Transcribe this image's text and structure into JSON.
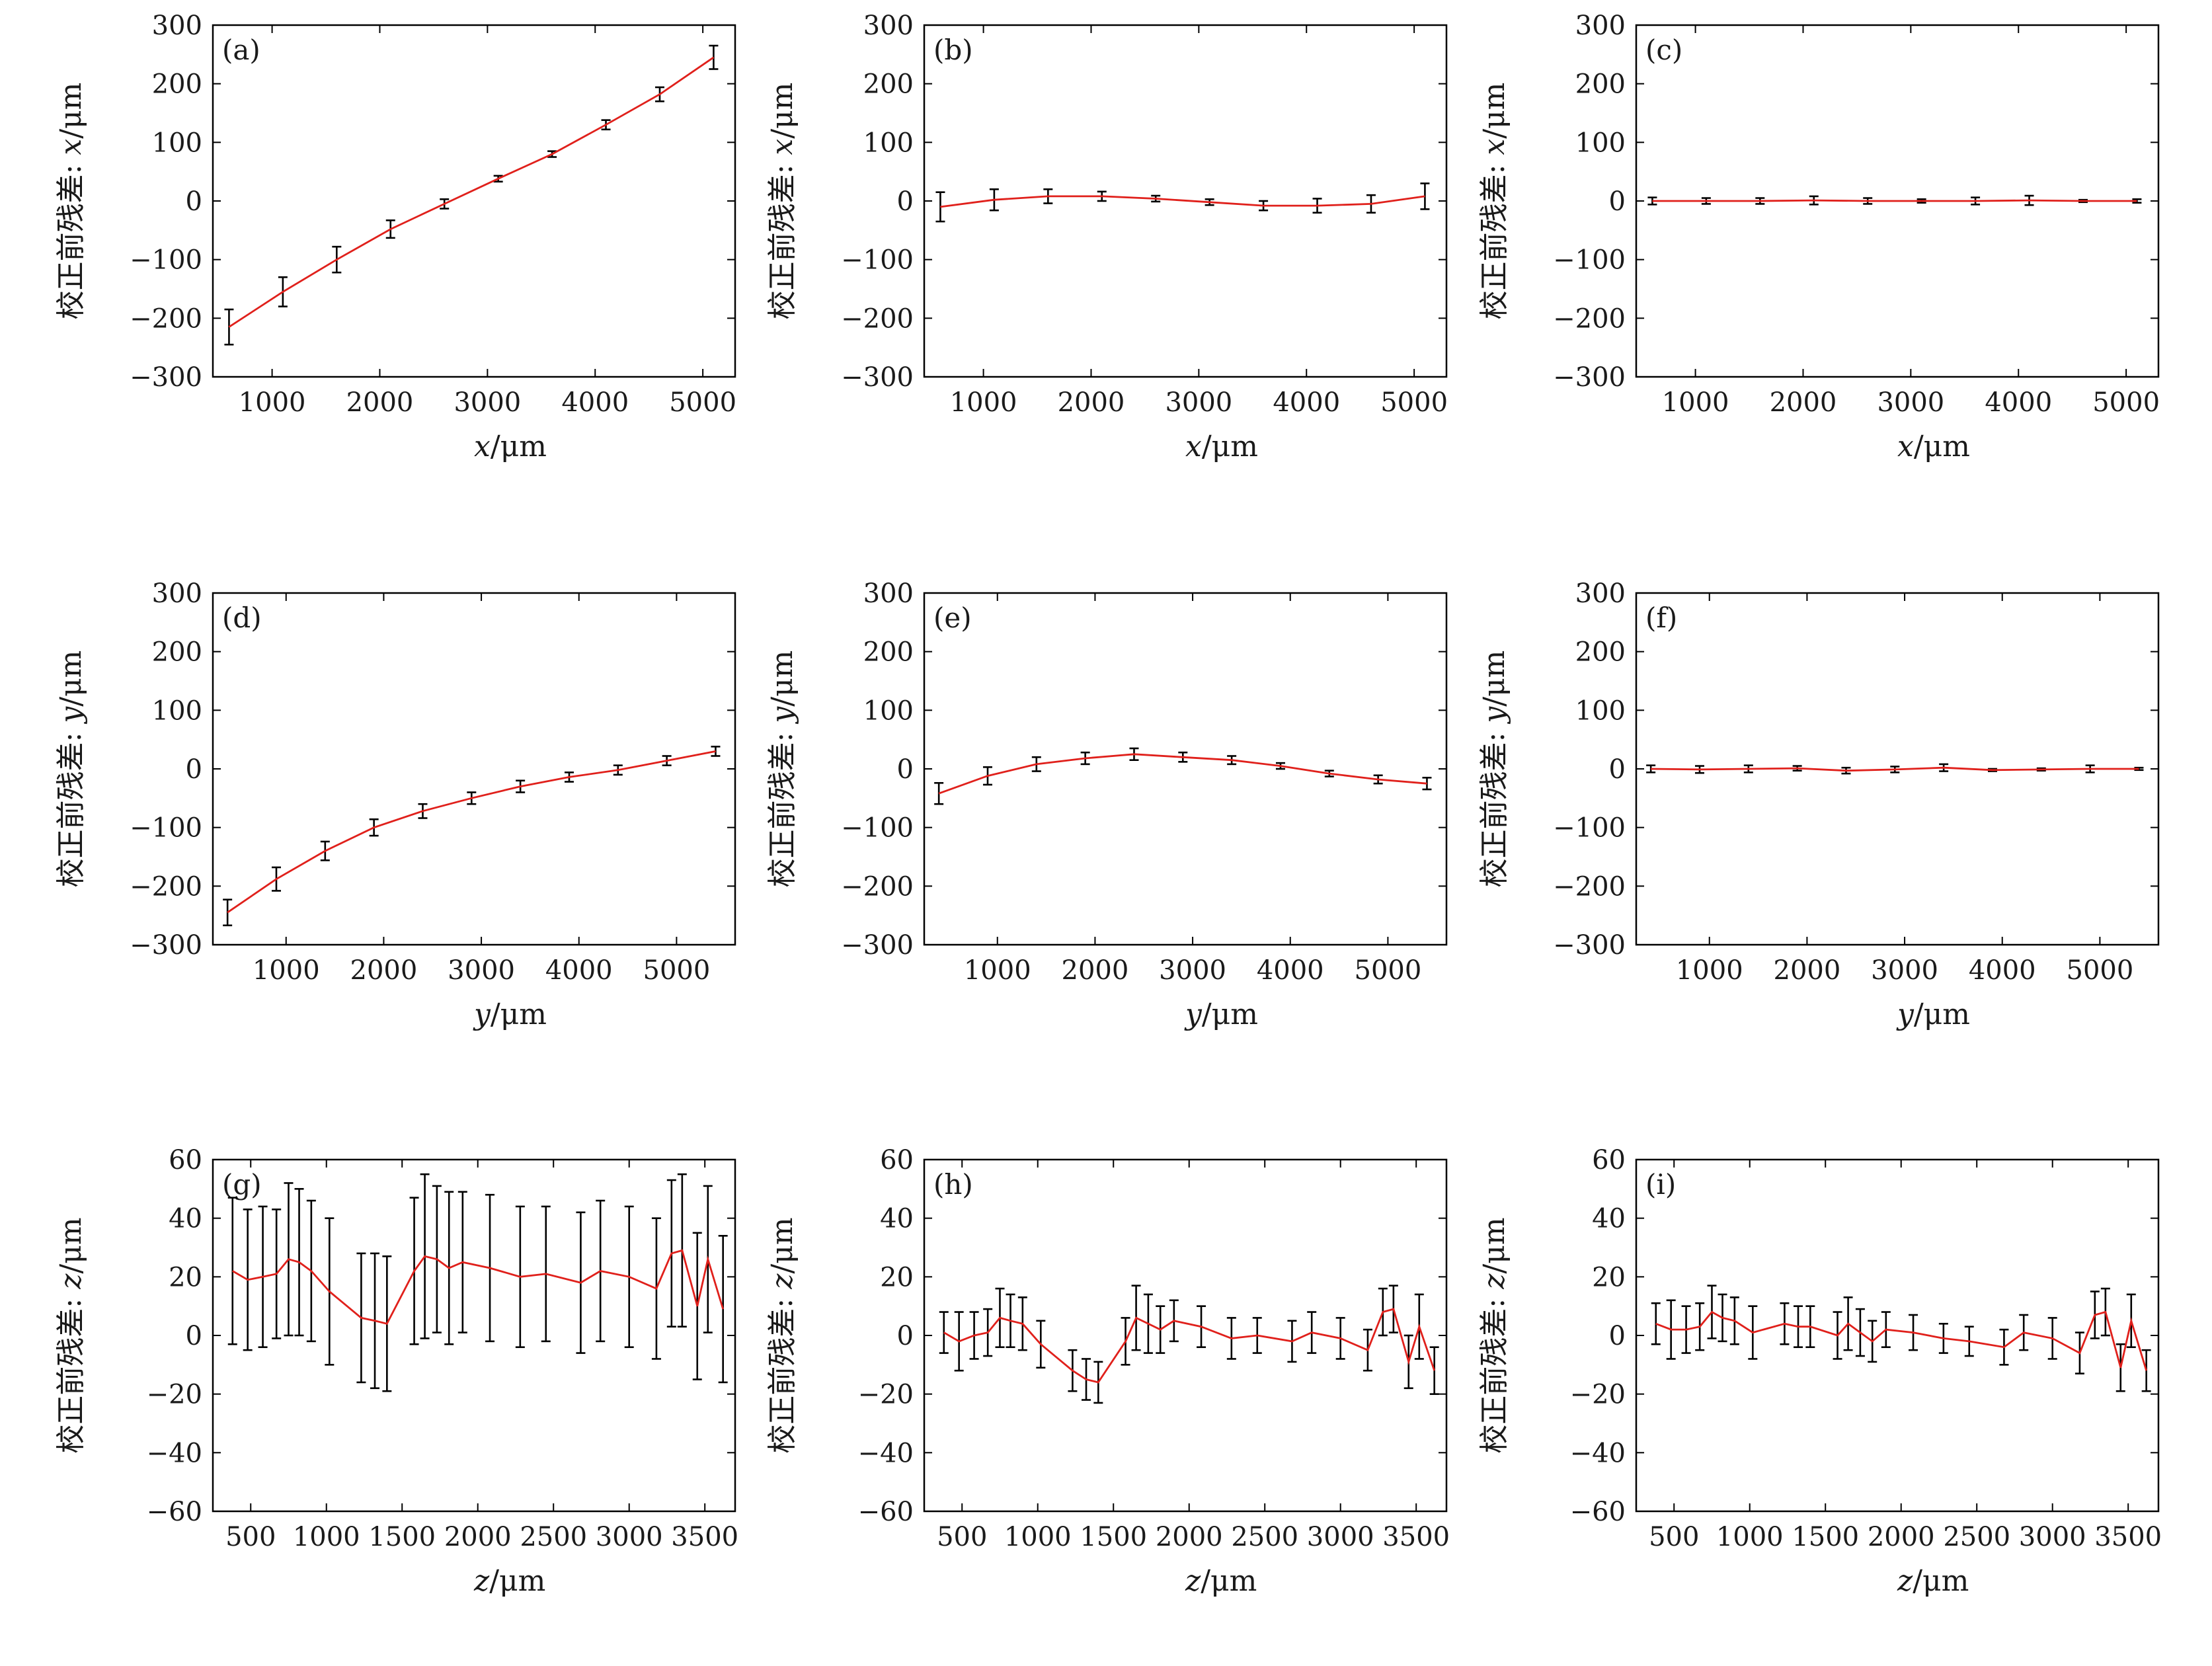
{
  "colors": {
    "line": "#e0201b",
    "errorbar": "#000000",
    "axis": "#000000"
  },
  "chart_data": [
    {
      "id": "a",
      "panel_label": "(a)",
      "type": "line",
      "xlabel": "x/μm",
      "ylabel": "校正前残差: x/μm",
      "ylim": [
        -300,
        300
      ],
      "yticks": [
        -300,
        -200,
        -100,
        0,
        100,
        200,
        300
      ],
      "xlim": [
        450,
        5300
      ],
      "xticks": [
        1000,
        2000,
        3000,
        4000,
        5000
      ],
      "x": [
        600,
        1100,
        1600,
        2100,
        2600,
        3100,
        3600,
        4100,
        4600,
        5100
      ],
      "y": [
        -215,
        -155,
        -100,
        -48,
        -5,
        38,
        80,
        130,
        182,
        245
      ],
      "err": [
        30,
        25,
        22,
        15,
        8,
        5,
        5,
        8,
        12,
        20
      ]
    },
    {
      "id": "b",
      "panel_label": "(b)",
      "type": "line",
      "xlabel": "x/μm",
      "ylabel": "校正前残差: x/μm",
      "ylim": [
        -300,
        300
      ],
      "yticks": [
        -300,
        -200,
        -100,
        0,
        100,
        200,
        300
      ],
      "xlim": [
        450,
        5300
      ],
      "xticks": [
        1000,
        2000,
        3000,
        4000,
        5000
      ],
      "x": [
        600,
        1100,
        1600,
        2100,
        2600,
        3100,
        3600,
        4100,
        4600,
        5100
      ],
      "y": [
        -10,
        2,
        8,
        8,
        4,
        -2,
        -8,
        -8,
        -5,
        8
      ],
      "err": [
        25,
        18,
        12,
        8,
        5,
        5,
        8,
        12,
        15,
        22
      ]
    },
    {
      "id": "c",
      "panel_label": "(c)",
      "type": "line",
      "xlabel": "x/μm",
      "ylabel": "校正前残差: x/μm",
      "ylim": [
        -300,
        300
      ],
      "yticks": [
        -300,
        -200,
        -100,
        0,
        100,
        200,
        300
      ],
      "xlim": [
        450,
        5300
      ],
      "xticks": [
        1000,
        2000,
        3000,
        4000,
        5000
      ],
      "x": [
        600,
        1100,
        1600,
        2100,
        2600,
        3100,
        3600,
        4100,
        4600,
        5100
      ],
      "y": [
        0,
        0,
        0,
        1,
        0,
        0,
        0,
        1,
        0,
        0
      ],
      "err": [
        6,
        5,
        5,
        7,
        5,
        3,
        6,
        8,
        2,
        3
      ]
    },
    {
      "id": "d",
      "panel_label": "(d)",
      "type": "line",
      "xlabel": "y/μm",
      "ylabel": "校正前残差: y/μm",
      "ylim": [
        -300,
        300
      ],
      "yticks": [
        -300,
        -200,
        -100,
        0,
        100,
        200,
        300
      ],
      "xlim": [
        250,
        5600
      ],
      "xticks": [
        1000,
        2000,
        3000,
        4000,
        5000
      ],
      "x": [
        400,
        900,
        1400,
        1900,
        2400,
        2900,
        3400,
        3900,
        4400,
        4900,
        5400
      ],
      "y": [
        -245,
        -188,
        -140,
        -100,
        -72,
        -50,
        -30,
        -14,
        -2,
        14,
        30
      ],
      "err": [
        22,
        20,
        16,
        14,
        12,
        10,
        10,
        8,
        8,
        8,
        8
      ]
    },
    {
      "id": "e",
      "panel_label": "(e)",
      "type": "line",
      "xlabel": "y/μm",
      "ylabel": "校正前残差: y/μm",
      "ylim": [
        -300,
        300
      ],
      "yticks": [
        -300,
        -200,
        -100,
        0,
        100,
        200,
        300
      ],
      "xlim": [
        250,
        5600
      ],
      "xticks": [
        1000,
        2000,
        3000,
        4000,
        5000
      ],
      "x": [
        400,
        900,
        1400,
        1900,
        2400,
        2900,
        3400,
        3900,
        4400,
        4900,
        5400
      ],
      "y": [
        -42,
        -12,
        8,
        18,
        25,
        20,
        15,
        5,
        -8,
        -18,
        -25
      ],
      "err": [
        18,
        15,
        12,
        10,
        10,
        8,
        7,
        5,
        5,
        7,
        10
      ]
    },
    {
      "id": "f",
      "panel_label": "(f)",
      "type": "line",
      "xlabel": "y/μm",
      "ylabel": "校正前残差: y/μm",
      "ylim": [
        -300,
        300
      ],
      "yticks": [
        -300,
        -200,
        -100,
        0,
        100,
        200,
        300
      ],
      "xlim": [
        250,
        5600
      ],
      "xticks": [
        1000,
        2000,
        3000,
        4000,
        5000
      ],
      "x": [
        400,
        900,
        1400,
        1900,
        2400,
        2900,
        3400,
        3900,
        4400,
        4900,
        5400
      ],
      "y": [
        0,
        -1,
        0,
        1,
        -3,
        -1,
        2,
        -2,
        -1,
        0,
        0
      ],
      "err": [
        6,
        6,
        6,
        4,
        5,
        5,
        6,
        2,
        2,
        6,
        2
      ]
    },
    {
      "id": "g",
      "panel_label": "(g)",
      "type": "line",
      "xlabel": "z/μm",
      "ylabel": "校正前残差: z/μm",
      "ylim": [
        -60,
        60
      ],
      "yticks": [
        -60,
        -40,
        -20,
        0,
        20,
        40,
        60
      ],
      "xlim": [
        250,
        3700
      ],
      "xticks": [
        500,
        1000,
        1500,
        2000,
        2500,
        3000,
        3500
      ],
      "x": [
        380,
        480,
        580,
        670,
        750,
        820,
        900,
        1020,
        1230,
        1320,
        1400,
        1580,
        1650,
        1730,
        1810,
        1900,
        2080,
        2280,
        2450,
        2680,
        2810,
        3000,
        3180,
        3280,
        3350,
        3450,
        3520,
        3620
      ],
      "y": [
        22,
        19,
        20,
        21,
        26,
        25,
        22,
        15,
        6,
        5,
        4,
        22,
        27,
        26,
        23,
        25,
        23,
        20,
        21,
        18,
        22,
        20,
        16,
        28,
        29,
        10,
        26,
        9
      ],
      "err": [
        25,
        24,
        24,
        22,
        26,
        25,
        24,
        25,
        22,
        23,
        23,
        25,
        28,
        25,
        26,
        24,
        25,
        24,
        23,
        24,
        24,
        24,
        24,
        25,
        26,
        25,
        25,
        25
      ]
    },
    {
      "id": "h",
      "panel_label": "(h)",
      "type": "line",
      "xlabel": "z/μm",
      "ylabel": "校正前残差: z/μm",
      "ylim": [
        -60,
        60
      ],
      "yticks": [
        -60,
        -40,
        -20,
        0,
        20,
        40,
        60
      ],
      "xlim": [
        250,
        3700
      ],
      "xticks": [
        500,
        1000,
        1500,
        2000,
        2500,
        3000,
        3500
      ],
      "x": [
        380,
        480,
        580,
        670,
        750,
        820,
        900,
        1020,
        1230,
        1320,
        1400,
        1580,
        1650,
        1730,
        1810,
        1900,
        2080,
        2280,
        2450,
        2680,
        2810,
        3000,
        3180,
        3280,
        3350,
        3450,
        3520,
        3620
      ],
      "y": [
        1,
        -2,
        0,
        1,
        6,
        5,
        4,
        -3,
        -12,
        -15,
        -16,
        -2,
        6,
        4,
        2,
        5,
        3,
        -1,
        0,
        -2,
        1,
        -1,
        -5,
        8,
        9,
        -9,
        3,
        -12
      ],
      "err": [
        7,
        10,
        8,
        8,
        10,
        9,
        9,
        8,
        7,
        7,
        7,
        8,
        11,
        10,
        8,
        7,
        7,
        7,
        6,
        7,
        7,
        7,
        7,
        8,
        8,
        9,
        11,
        8
      ]
    },
    {
      "id": "i",
      "panel_label": "(i)",
      "type": "line",
      "xlabel": "z/μm",
      "ylabel": "校正前残差: z/μm",
      "ylim": [
        -60,
        60
      ],
      "yticks": [
        -60,
        -40,
        -20,
        0,
        20,
        40,
        60
      ],
      "xlim": [
        250,
        3700
      ],
      "xticks": [
        500,
        1000,
        1500,
        2000,
        2500,
        3000,
        3500
      ],
      "x": [
        380,
        480,
        580,
        670,
        750,
        820,
        900,
        1020,
        1230,
        1320,
        1400,
        1580,
        1650,
        1730,
        1810,
        1900,
        2080,
        2280,
        2450,
        2680,
        2810,
        3000,
        3180,
        3280,
        3350,
        3450,
        3520,
        3620
      ],
      "y": [
        4,
        2,
        2,
        3,
        8,
        6,
        5,
        1,
        4,
        3,
        3,
        0,
        4,
        1,
        -2,
        2,
        1,
        -1,
        -2,
        -4,
        1,
        -1,
        -6,
        7,
        8,
        -11,
        5,
        -12
      ],
      "err": [
        7,
        10,
        8,
        8,
        9,
        8,
        8,
        9,
        7,
        7,
        7,
        8,
        9,
        8,
        7,
        6,
        6,
        5,
        5,
        6,
        6,
        7,
        7,
        8,
        8,
        8,
        9,
        7
      ]
    }
  ]
}
